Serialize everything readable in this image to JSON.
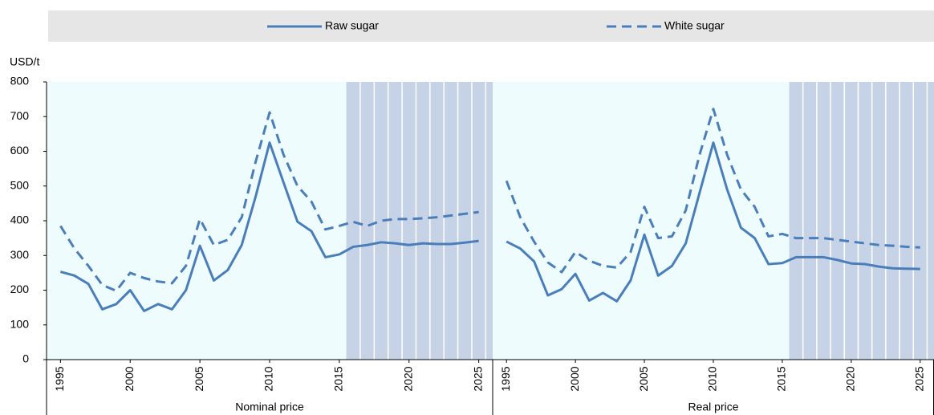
{
  "chart_data": [
    {
      "type": "line",
      "xlabel": "Nominal price",
      "ylabel": "USD/t",
      "x": [
        1995,
        1996,
        1997,
        1998,
        1999,
        2000,
        2001,
        2002,
        2003,
        2004,
        2005,
        2006,
        2007,
        2008,
        2009,
        2010,
        2011,
        2012,
        2013,
        2014,
        2015,
        2016,
        2017,
        2018,
        2019,
        2020,
        2021,
        2022,
        2023,
        2024,
        2025
      ],
      "xlim": [
        1994,
        2026
      ],
      "xticks": [
        1995,
        2000,
        2005,
        2010,
        2015,
        2020,
        2025
      ],
      "ylim": [
        0,
        800
      ],
      "yticks": [
        0,
        100,
        200,
        300,
        400,
        500,
        600,
        700,
        800
      ],
      "projection_start": 2016,
      "legend": "top",
      "series": [
        {
          "name": "Raw sugar",
          "color": "#4a7ebb",
          "dash": "solid",
          "values": [
            253,
            242,
            218,
            145,
            160,
            200,
            140,
            160,
            145,
            200,
            328,
            228,
            258,
            330,
            470,
            625,
            510,
            397,
            370,
            295,
            303,
            325,
            330,
            338,
            335,
            330,
            335,
            333,
            333,
            337,
            342
          ]
        },
        {
          "name": "White sugar",
          "color": "#4a7ebb",
          "dash": "dashed",
          "values": [
            385,
            320,
            270,
            215,
            198,
            250,
            235,
            225,
            220,
            270,
            405,
            330,
            345,
            410,
            570,
            712,
            590,
            500,
            455,
            375,
            385,
            397,
            385,
            400,
            405,
            405,
            407,
            410,
            415,
            420,
            425
          ]
        }
      ]
    },
    {
      "type": "line",
      "xlabel": "Real price",
      "x": [
        1995,
        1996,
        1997,
        1998,
        1999,
        2000,
        2001,
        2002,
        2003,
        2004,
        2005,
        2006,
        2007,
        2008,
        2009,
        2010,
        2011,
        2012,
        2013,
        2014,
        2015,
        2016,
        2017,
        2018,
        2019,
        2020,
        2021,
        2022,
        2023,
        2024,
        2025
      ],
      "xlim": [
        1994,
        2026
      ],
      "xticks": [
        1995,
        2000,
        2005,
        2010,
        2015,
        2020,
        2025
      ],
      "ylim": [
        0,
        800
      ],
      "projection_start": 2016,
      "series": [
        {
          "name": "Raw sugar",
          "color": "#4a7ebb",
          "dash": "solid",
          "values": [
            340,
            320,
            283,
            185,
            203,
            247,
            170,
            192,
            168,
            228,
            360,
            242,
            270,
            335,
            480,
            625,
            490,
            380,
            350,
            275,
            278,
            295,
            295,
            295,
            287,
            277,
            275,
            268,
            263,
            262,
            261
          ]
        },
        {
          "name": "White sugar",
          "color": "#4a7ebb",
          "dash": "dashed",
          "values": [
            515,
            410,
            340,
            280,
            252,
            310,
            285,
            270,
            265,
            310,
            440,
            350,
            355,
            430,
            590,
            722,
            590,
            490,
            440,
            355,
            362,
            350,
            350,
            350,
            345,
            340,
            335,
            330,
            328,
            325,
            323
          ]
        }
      ]
    }
  ]
}
